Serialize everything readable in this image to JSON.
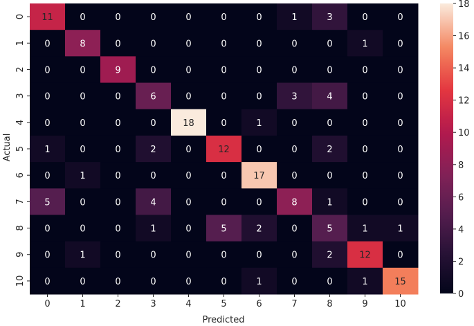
{
  "chart_data": {
    "type": "heatmap",
    "xlabel": "Predicted",
    "ylabel": "Actual",
    "x_categories": [
      "0",
      "1",
      "2",
      "3",
      "4",
      "5",
      "6",
      "7",
      "8",
      "9",
      "10"
    ],
    "y_categories": [
      "0",
      "1",
      "2",
      "3",
      "4",
      "5",
      "6",
      "7",
      "8",
      "9",
      "10"
    ],
    "values": [
      [
        11,
        0,
        0,
        0,
        0,
        0,
        0,
        1,
        3,
        0,
        0
      ],
      [
        0,
        8,
        0,
        0,
        0,
        0,
        0,
        0,
        0,
        1,
        0
      ],
      [
        0,
        0,
        9,
        0,
        0,
        0,
        0,
        0,
        0,
        0,
        0
      ],
      [
        0,
        0,
        0,
        6,
        0,
        0,
        0,
        3,
        4,
        0,
        0
      ],
      [
        0,
        0,
        0,
        0,
        18,
        0,
        1,
        0,
        0,
        0,
        0
      ],
      [
        1,
        0,
        0,
        2,
        0,
        12,
        0,
        0,
        2,
        0,
        0
      ],
      [
        0,
        1,
        0,
        0,
        0,
        0,
        17,
        0,
        0,
        0,
        0
      ],
      [
        5,
        0,
        0,
        4,
        0,
        0,
        0,
        8,
        1,
        0,
        0
      ],
      [
        0,
        0,
        0,
        1,
        0,
        5,
        2,
        0,
        5,
        1,
        1
      ],
      [
        0,
        1,
        0,
        0,
        0,
        0,
        0,
        0,
        2,
        12,
        0
      ],
      [
        0,
        0,
        0,
        0,
        0,
        0,
        1,
        0,
        0,
        1,
        15
      ]
    ],
    "colorbar": {
      "min": 0,
      "max": 18,
      "ticks": [
        0,
        2,
        4,
        6,
        8,
        10,
        12,
        14,
        16,
        18
      ],
      "colormap": "rocket"
    },
    "annotations": true,
    "grid": false
  }
}
